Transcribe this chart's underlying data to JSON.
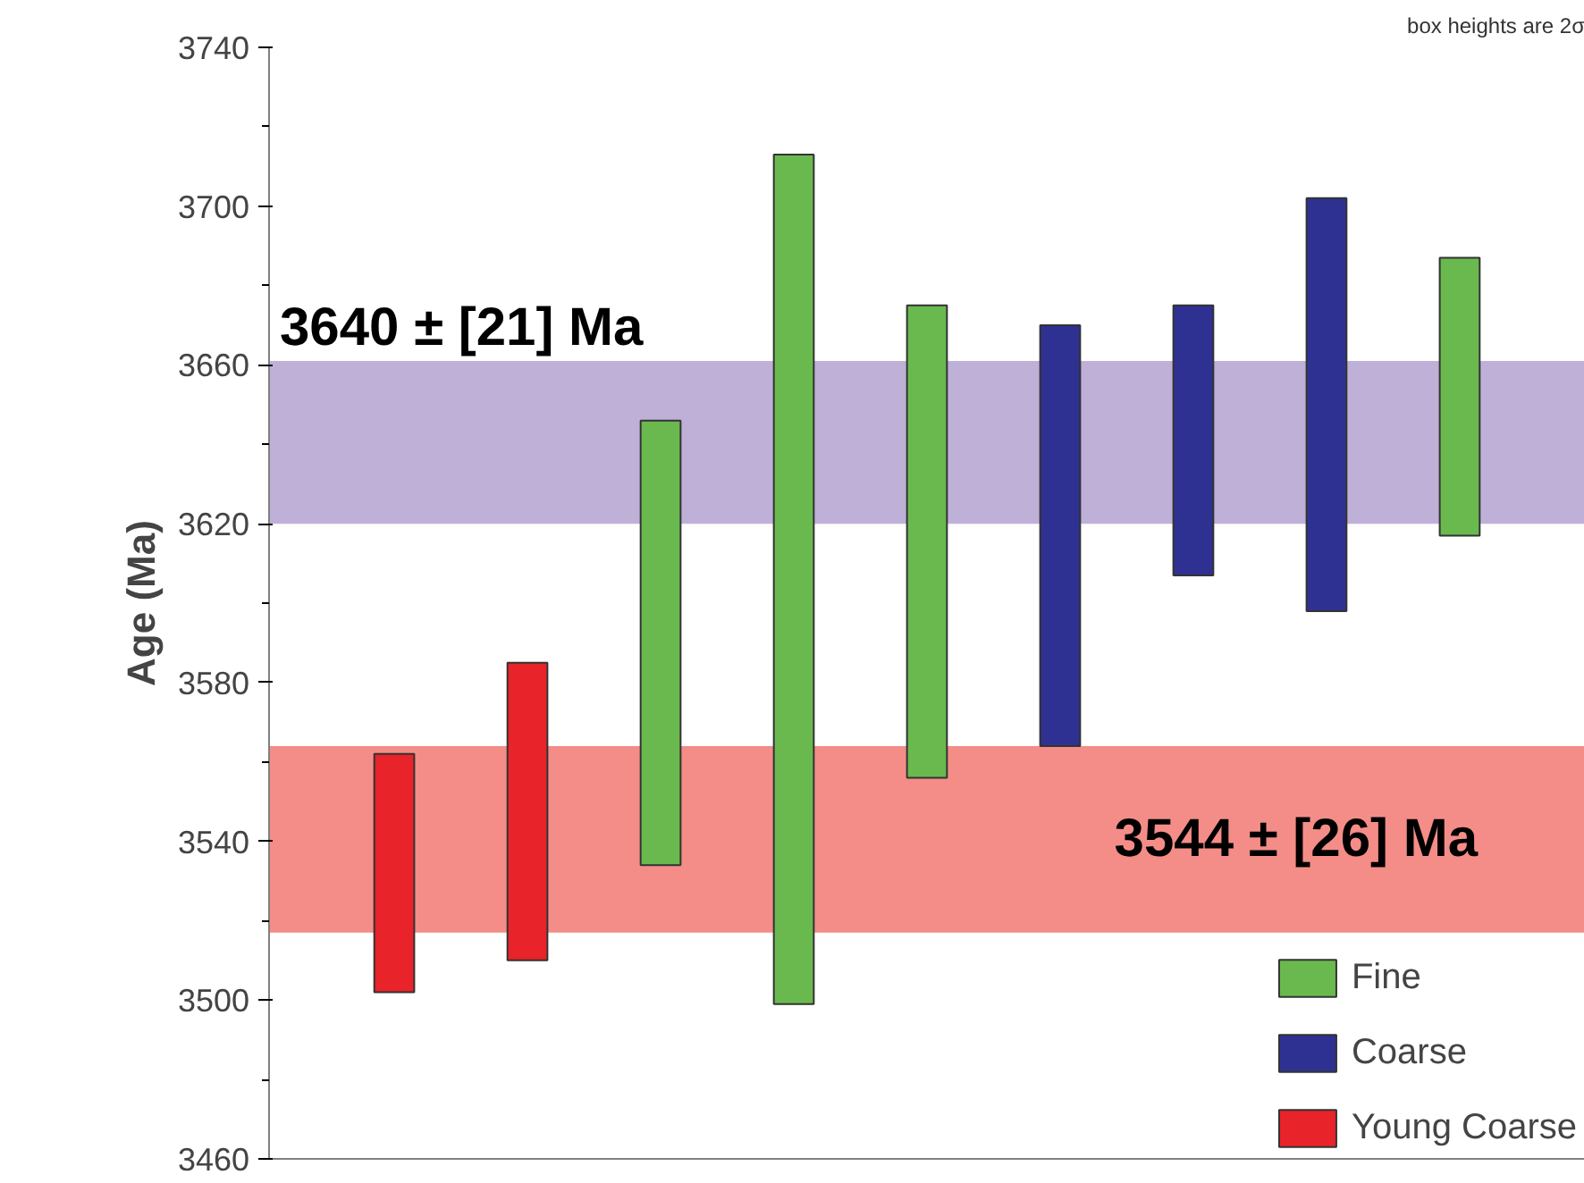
{
  "chart_data": {
    "type": "bar",
    "ylabel": "Age (Ma)",
    "categories": [
      null,
      null,
      null,
      null,
      null,
      null,
      null,
      null,
      null
    ],
    "series": [
      {
        "name": "Fine",
        "color": "#6ab94e",
        "values": [
          null,
          null,
          112,
          214,
          119,
          null,
          null,
          null,
          70
        ],
        "base": [
          null,
          null,
          3534,
          3499,
          3556,
          null,
          null,
          null,
          3617
        ]
      },
      {
        "name": "Coarse",
        "color": "#2e3192",
        "values": [
          null,
          null,
          null,
          null,
          null,
          106,
          68,
          104,
          null
        ],
        "base": [
          null,
          null,
          null,
          null,
          null,
          3564,
          3607,
          3598,
          null
        ]
      },
      {
        "name": "Young Coarse",
        "color": "#e8232a",
        "values": [
          60,
          75,
          null,
          null,
          null,
          null,
          null,
          null,
          null
        ],
        "base": [
          3502,
          3510,
          null,
          null,
          null,
          null,
          null,
          null,
          null
        ]
      }
    ],
    "bands": [
      {
        "axis": "y",
        "from": 3620,
        "to": 3661,
        "label": "3640 ± [21] Ma",
        "color": "#bfb0d8"
      },
      {
        "axis": "y",
        "from": 3517,
        "to": 3564,
        "label": "3544 ± [26] Ma",
        "color": "#f48d87"
      }
    ],
    "annotations": [
      "box heights are 2σ"
    ],
    "ylim": [
      3460,
      3740
    ],
    "yticks": [
      3460,
      3500,
      3540,
      3580,
      3620,
      3660,
      3700,
      3740
    ],
    "tick_labels": "y",
    "grid": false,
    "legend": "bottom right"
  }
}
